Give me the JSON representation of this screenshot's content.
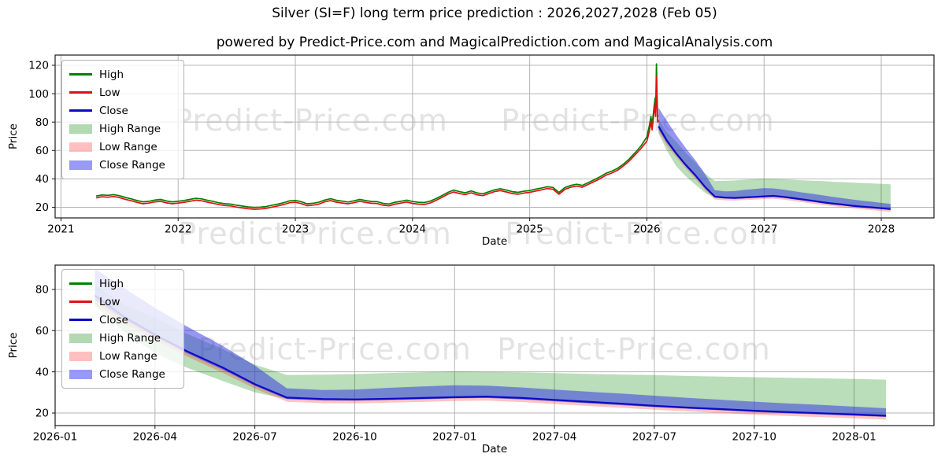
{
  "page": {
    "title": "Silver (SI=F) long term price prediction : 2026,2027,2028 (Feb 05)",
    "subtitle": "powered by Predict-Price.com and MagicalPrediction.com and MagicalAnalysis.com",
    "watermark_text": "Predict-Price.com"
  },
  "colors": {
    "high_line": "#008000",
    "low_line": "#e01212",
    "close_line": "#0a0ac8",
    "high_range": "rgba(0,128,0,0.27)",
    "low_range": "rgba(255,30,30,0.27)",
    "close_range": "rgba(45,45,230,0.5)",
    "grid": "#b4b4b4",
    "spine": "#1a1a1a",
    "tick_text": "#000000"
  },
  "legend": {
    "items": [
      {
        "label": "High",
        "type": "line",
        "color": "#008000"
      },
      {
        "label": "Low",
        "type": "line",
        "color": "#e01212"
      },
      {
        "label": "Close",
        "type": "line",
        "color": "#0a0ac8"
      },
      {
        "label": "High Range",
        "type": "patch",
        "color": "rgba(0,128,0,0.3)"
      },
      {
        "label": "Low Range",
        "type": "patch",
        "color": "rgba(255,60,60,0.33)"
      },
      {
        "label": "Close Range",
        "type": "patch",
        "color": "rgba(70,70,240,0.55)"
      }
    ]
  },
  "chart_data": {
    "shared": {
      "history": {
        "x": [
          2021.3,
          2021.35,
          2021.4,
          2021.45,
          2021.5,
          2021.55,
          2021.6,
          2021.65,
          2021.7,
          2021.75,
          2021.8,
          2021.85,
          2021.9,
          2021.95,
          2022.0,
          2022.05,
          2022.1,
          2022.15,
          2022.2,
          2022.25,
          2022.3,
          2022.35,
          2022.4,
          2022.45,
          2022.5,
          2022.55,
          2022.6,
          2022.65,
          2022.7,
          2022.75,
          2022.8,
          2022.85,
          2022.9,
          2022.95,
          2023.0,
          2023.05,
          2023.1,
          2023.15,
          2023.2,
          2023.25,
          2023.3,
          2023.35,
          2023.4,
          2023.45,
          2023.5,
          2023.55,
          2023.6,
          2023.65,
          2023.7,
          2023.75,
          2023.8,
          2023.85,
          2023.9,
          2023.95,
          2024.0,
          2024.05,
          2024.1,
          2024.15,
          2024.2,
          2024.25,
          2024.3,
          2024.35,
          2024.4,
          2024.45,
          2024.5,
          2024.55,
          2024.6,
          2024.65,
          2024.7,
          2024.75,
          2024.8,
          2024.85,
          2024.9,
          2024.95,
          2025.0,
          2025.05,
          2025.1,
          2025.15,
          2025.2,
          2025.25,
          2025.3,
          2025.35,
          2025.4,
          2025.45,
          2025.5,
          2025.55,
          2025.6,
          2025.65,
          2025.7,
          2025.75,
          2025.8,
          2025.85,
          2025.9,
          2025.95,
          2026.0,
          2026.02,
          2026.035,
          2026.045,
          2026.06,
          2026.07,
          2026.075,
          2026.082,
          2026.087,
          2026.092,
          2026.1
        ],
        "high": [
          27.9,
          28.7,
          28.4,
          28.9,
          28.1,
          26.9,
          25.9,
          24.7,
          23.8,
          24.2,
          25.1,
          25.5,
          24.4,
          23.8,
          24.2,
          24.8,
          25.5,
          26.3,
          25.9,
          24.9,
          24.1,
          23.1,
          22.5,
          22.2,
          21.4,
          20.8,
          20.2,
          19.9,
          20.1,
          20.5,
          21.4,
          22.2,
          23.2,
          24.5,
          24.8,
          23.9,
          22.4,
          22.8,
          23.5,
          25.1,
          26.0,
          24.9,
          24.3,
          23.7,
          24.5,
          25.5,
          24.7,
          24.1,
          23.9,
          22.7,
          22.3,
          23.5,
          24.2,
          25.0,
          24.0,
          23.5,
          23.3,
          24.3,
          26.1,
          28.2,
          30.4,
          32.1,
          31.0,
          30.2,
          31.5,
          30.1,
          29.5,
          30.9,
          32.3,
          33.0,
          32.1,
          31.0,
          30.5,
          31.3,
          31.8,
          32.7,
          33.5,
          34.5,
          33.9,
          30.4,
          33.9,
          35.4,
          36.2,
          35.4,
          37.4,
          39.4,
          41.4,
          43.9,
          45.4,
          47.4,
          50.4,
          54.0,
          58.5,
          63.2,
          69.5,
          77.0,
          84.0,
          78.0,
          90.0,
          97.0,
          88.0,
          121.0,
          98.0,
          84.0,
          84.5
        ],
        "low": [
          26.6,
          27.4,
          27.1,
          27.6,
          26.8,
          25.6,
          24.6,
          23.4,
          22.5,
          22.9,
          23.8,
          24.2,
          23.1,
          22.5,
          22.9,
          23.5,
          24.2,
          25.0,
          24.6,
          23.6,
          22.8,
          21.8,
          21.2,
          20.9,
          20.1,
          19.5,
          18.9,
          18.6,
          18.8,
          19.2,
          20.1,
          20.9,
          21.9,
          23.2,
          23.5,
          22.6,
          21.1,
          21.5,
          22.2,
          23.8,
          24.7,
          23.6,
          23.0,
          22.4,
          23.2,
          24.2,
          23.4,
          22.8,
          22.6,
          21.4,
          21.0,
          22.2,
          22.9,
          23.7,
          22.7,
          22.2,
          22.0,
          23.0,
          24.8,
          26.9,
          29.1,
          30.8,
          29.7,
          28.9,
          30.2,
          28.8,
          28.2,
          29.6,
          31.0,
          31.7,
          30.8,
          29.7,
          29.2,
          30.0,
          30.5,
          31.4,
          32.2,
          33.2,
          32.6,
          29.1,
          32.6,
          34.1,
          34.9,
          34.1,
          36.1,
          38.1,
          40.1,
          42.6,
          44.1,
          46.1,
          49.1,
          52.6,
          57.0,
          61.4,
          66.5,
          73.0,
          80.0,
          74.5,
          86.0,
          92.5,
          84.0,
          112.0,
          93.5,
          80.0,
          81.5
        ],
        "close": [
          27.0,
          27.8,
          27.5,
          28.0,
          27.2,
          26.0,
          25.0,
          23.8,
          22.9,
          23.3,
          24.2,
          24.6,
          23.5,
          22.9,
          23.3,
          23.9,
          24.6,
          25.4,
          25.0,
          24.0,
          23.2,
          22.2,
          21.6,
          21.3,
          20.5,
          19.9,
          19.3,
          19.0,
          19.2,
          19.6,
          20.5,
          21.3,
          22.3,
          23.6,
          23.9,
          23.0,
          21.5,
          21.9,
          22.6,
          24.2,
          25.1,
          24.0,
          23.4,
          22.8,
          23.6,
          24.6,
          23.8,
          23.2,
          23.0,
          21.8,
          21.4,
          22.6,
          23.3,
          24.1,
          23.1,
          22.6,
          22.4,
          23.4,
          25.2,
          27.3,
          29.5,
          31.2,
          30.1,
          29.3,
          30.6,
          29.2,
          28.6,
          30.0,
          31.4,
          32.1,
          31.2,
          30.1,
          29.6,
          30.4,
          30.9,
          31.8,
          32.6,
          33.6,
          33.0,
          29.5,
          33.0,
          34.5,
          35.3,
          34.5,
          36.5,
          38.5,
          40.5,
          43.0,
          44.5,
          46.5,
          49.5,
          53.0,
          57.5,
          62.0,
          68.0,
          75.0,
          82.0,
          76.0,
          88.0,
          95.0,
          86.0,
          118.0,
          96.0,
          82.0,
          83.0
        ]
      },
      "prediction": {
        "x": [
          2026.1,
          2026.17,
          2026.25,
          2026.33,
          2026.42,
          2026.5,
          2026.58,
          2026.67,
          2026.75,
          2026.83,
          2026.92,
          2027.0,
          2027.08,
          2027.17,
          2027.25,
          2027.33,
          2027.42,
          2027.5,
          2027.58,
          2027.67,
          2027.75,
          2027.83,
          2027.92,
          2028.0,
          2028.08
        ],
        "close": [
          77,
          67,
          58,
          50,
          42,
          34,
          27.5,
          26.8,
          26.6,
          26.9,
          27.3,
          27.7,
          28.0,
          27.3,
          26.4,
          25.5,
          24.5,
          23.5,
          22.7,
          21.9,
          21.1,
          20.5,
          19.9,
          19.3,
          18.7
        ],
        "close_hi": [
          90,
          81,
          71,
          62,
          52.5,
          43,
          32.0,
          31.2,
          31.4,
          32.2,
          32.9,
          33.5,
          33.3,
          32.4,
          31.4,
          30.4,
          29.4,
          28.4,
          27.4,
          26.4,
          25.5,
          24.7,
          23.9,
          23.1,
          22.3
        ],
        "close_lo": [
          75,
          65.5,
          57,
          49,
          41,
          33.2,
          26.8,
          26.1,
          26.0,
          26.3,
          26.7,
          27.1,
          27.3,
          26.6,
          25.7,
          24.8,
          23.8,
          22.9,
          22.1,
          21.3,
          20.5,
          19.9,
          19.3,
          18.7,
          18.1
        ],
        "high_hi": [
          82,
          73,
          66,
          58.5,
          51,
          43.5,
          38.5,
          38.6,
          38.9,
          39.4,
          39.8,
          40.2,
          40.0,
          39.7,
          39.4,
          39.0,
          38.7,
          38.4,
          38.0,
          37.7,
          37.4,
          37.1,
          36.8,
          36.5,
          36.2
        ],
        "high_lo": [
          72,
          60,
          49,
          42,
          35.5,
          30,
          26.8,
          26.1,
          26.0,
          26.3,
          26.7,
          27.1,
          27.3,
          26.6,
          25.7,
          24.8,
          23.8,
          22.9,
          22.1,
          21.3,
          20.5,
          19.9,
          19.3,
          18.7,
          18.1
        ],
        "low_hi": [
          76.5,
          66,
          57.5,
          49.5,
          41.5,
          33.5,
          27.5,
          26.8,
          26.6,
          26.9,
          27.3,
          27.7,
          28.0,
          27.3,
          26.4,
          25.5,
          24.5,
          23.5,
          22.7,
          21.9,
          21.1,
          20.5,
          19.9,
          19.3,
          18.7
        ],
        "low_lo": [
          73,
          63.5,
          55.5,
          47.5,
          39.5,
          31.9,
          25.5,
          24.8,
          24.7,
          25.0,
          25.4,
          25.8,
          26.0,
          25.3,
          24.4,
          23.5,
          22.5,
          21.6,
          20.8,
          20.0,
          19.2,
          18.6,
          18.0,
          17.4,
          16.8
        ]
      }
    },
    "charts": [
      {
        "name": "main-history-and-forecast",
        "type": "line",
        "xlabel": "Date",
        "ylabel": "Price",
        "xlim": [
          2020.95,
          2028.45
        ],
        "ylim": [
          12.5,
          127.2
        ],
        "xticks": [
          2021,
          2022,
          2023,
          2024,
          2025,
          2026,
          2027,
          2028
        ],
        "xtick_labels": [
          "2021",
          "2022",
          "2023",
          "2024",
          "2025",
          "2026",
          "2027",
          "2028"
        ],
        "yticks": [
          20,
          40,
          60,
          80,
          100,
          120
        ],
        "ytick_labels": [
          "20",
          "40",
          "60",
          "80",
          "100",
          "120"
        ],
        "grid": true,
        "show_history": true,
        "show_prediction": true,
        "legend_position": "upper left"
      },
      {
        "name": "forecast-detail",
        "type": "line",
        "xlabel": "Date",
        "ylabel": "Price",
        "xlim": [
          2026.0,
          2028.2
        ],
        "ylim": [
          13.9,
          91.8
        ],
        "xticks": [
          2026.0,
          2026.25,
          2026.5,
          2026.75,
          2027.0,
          2027.25,
          2027.5,
          2027.75,
          2028.0
        ],
        "xtick_labels": [
          "2026-01",
          "2026-04",
          "2026-07",
          "2026-10",
          "2027-01",
          "2027-04",
          "2027-07",
          "2027-10",
          "2028-01"
        ],
        "yticks": [
          20,
          40,
          60,
          80
        ],
        "ytick_labels": [
          "20",
          "40",
          "60",
          "80"
        ],
        "grid": true,
        "show_history": false,
        "show_prediction": true,
        "legend_position": "upper left"
      }
    ]
  }
}
